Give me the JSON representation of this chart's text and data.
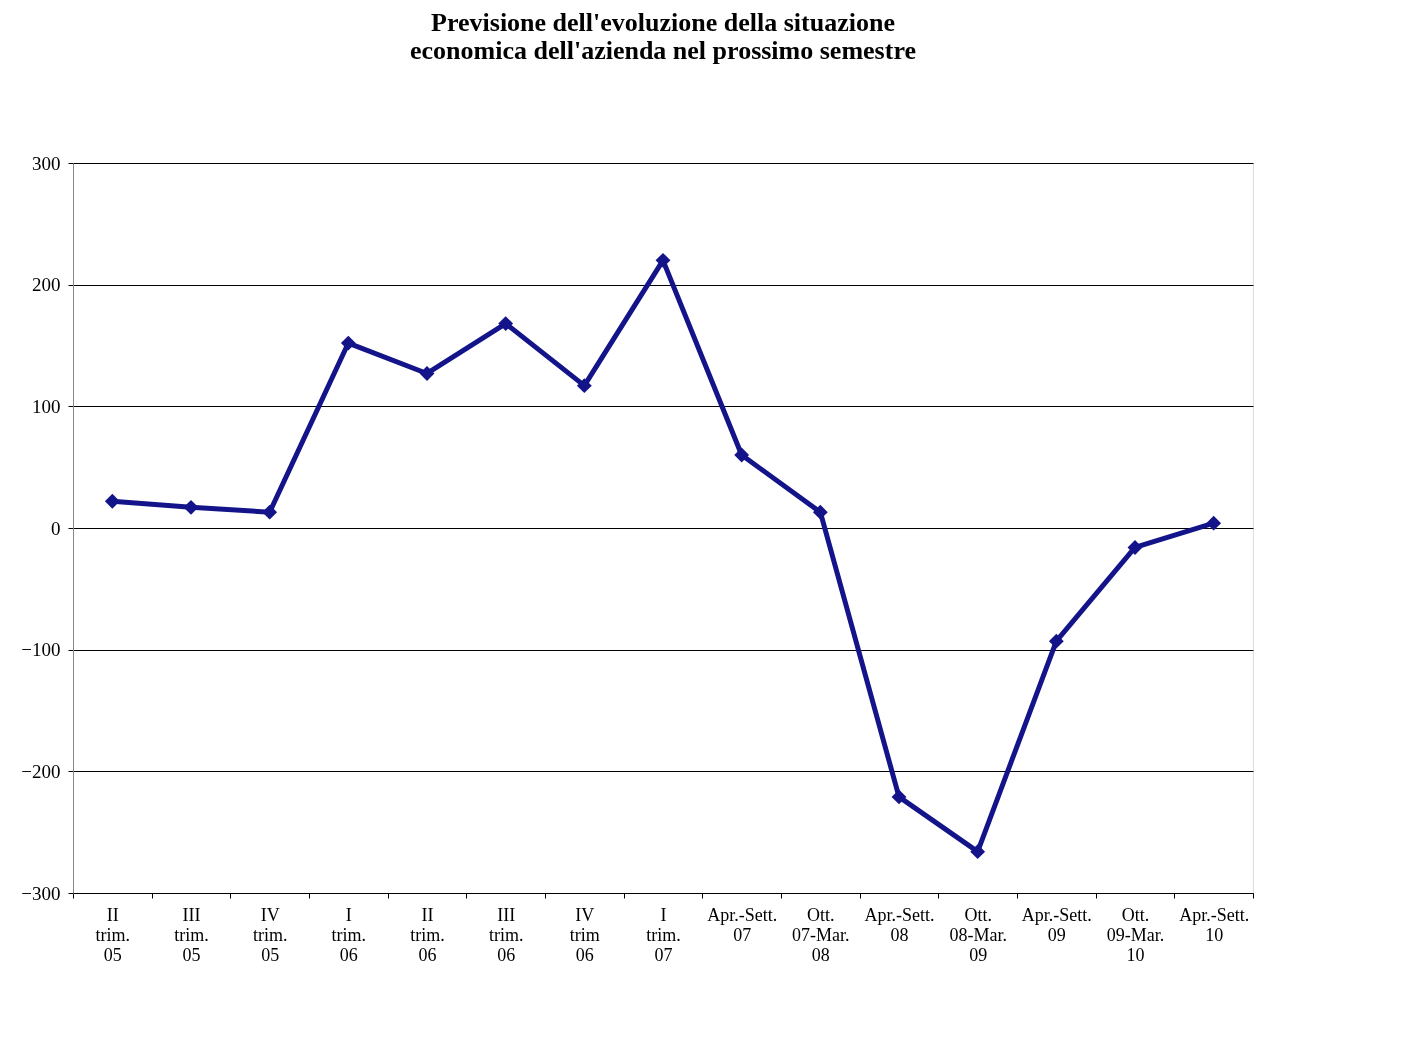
{
  "chart_data": {
    "type": "line",
    "title": "Previsione dell'evoluzione della situazione economica dell'azienda nel prossimo semestre",
    "categories": [
      "II trim. 05",
      "III trim. 05",
      "IV trim. 05",
      "I trim. 06",
      "II trim. 06",
      "III trim. 06",
      "IV trim 06",
      "I trim. 07",
      "Apr.-Sett. 07",
      "Ott. 07-Mar. 08",
      "Apr.-Sett. 08",
      "Ott. 08-Mar. 09",
      "Apr.-Sett. 09",
      "Ott. 09-Mar. 10",
      "Apr.-Sett. 10"
    ],
    "series": [
      {
        "color": "#14148a",
        "values": [
          22,
          17,
          13,
          152,
          127,
          168,
          117,
          220,
          60,
          13,
          -221,
          -266,
          -93,
          -16,
          4
        ]
      }
    ],
    "ylim": [
      -300,
      300
    ],
    "yticks": [
      -300,
      -200,
      -100,
      0,
      100,
      200,
      300
    ],
    "grid": "y",
    "marker": "diamond",
    "line_style": "solid"
  }
}
